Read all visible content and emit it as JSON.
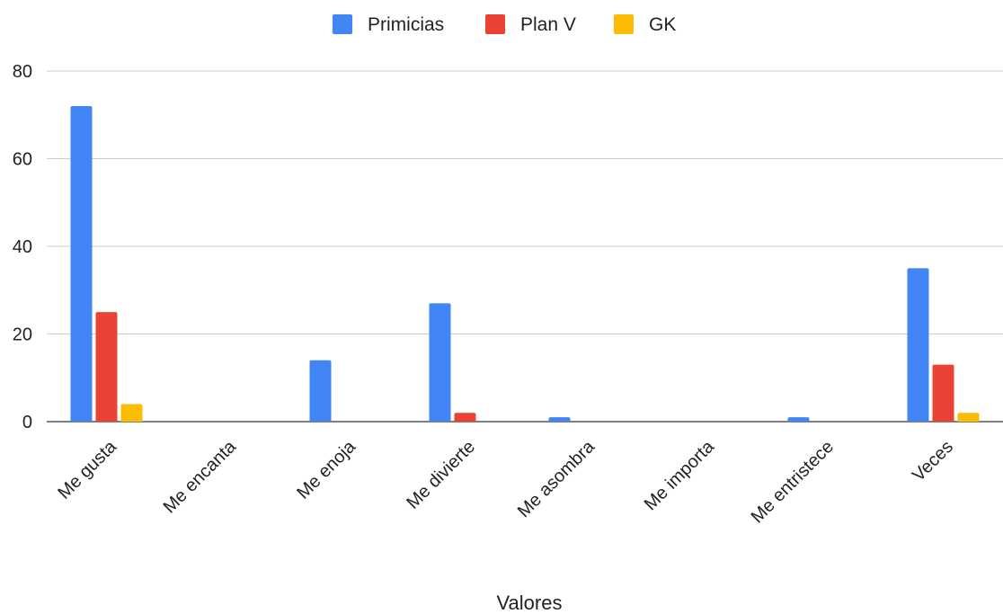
{
  "chart_data": {
    "type": "bar",
    "title": "",
    "xlabel": "Valores",
    "ylabel": "",
    "ylim": [
      0,
      80
    ],
    "yticks": [
      0,
      20,
      40,
      60,
      80
    ],
    "grid": true,
    "legend_position": "top",
    "categories": [
      "Me gusta",
      "Me encanta",
      "Me enoja",
      "Me divierte",
      "Me asombra",
      "Me importa",
      "Me entristece",
      "Veces"
    ],
    "series": [
      {
        "name": "Primicias",
        "color": "#4285F4",
        "values": [
          72,
          0,
          14,
          27,
          1,
          0,
          1,
          35
        ]
      },
      {
        "name": "Plan V",
        "color": "#EA4335",
        "values": [
          25,
          0,
          0,
          2,
          0,
          0,
          0,
          13
        ]
      },
      {
        "name": "GK",
        "color": "#FBBC04",
        "values": [
          4,
          0,
          0,
          0,
          0,
          0,
          0,
          2
        ]
      }
    ]
  }
}
